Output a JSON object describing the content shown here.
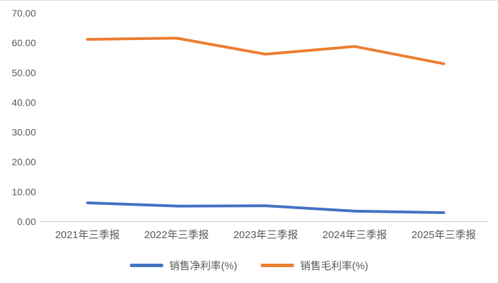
{
  "chart_data": {
    "type": "line",
    "categories": [
      "2021年三季报",
      "2022年三季报",
      "2023年三季报",
      "2024年三季报",
      "2025年三季报"
    ],
    "series": [
      {
        "name": "销售净利率(%)",
        "color": "#4472C4",
        "values": [
          6.3,
          5.2,
          5.3,
          3.5,
          3.0
        ]
      },
      {
        "name": "销售毛利率(%)",
        "color": "#ED7D31",
        "values": [
          61.2,
          61.6,
          56.2,
          58.8,
          53.0
        ]
      }
    ],
    "ylim": [
      0,
      70
    ],
    "ytick_step": 10,
    "ytick_labels": [
      "0.00",
      "10.00",
      "20.00",
      "30.00",
      "40.00",
      "50.00",
      "60.00",
      "70.00"
    ],
    "grid": false,
    "legend_position": "bottom",
    "axis_line_color": "#bfbfbf",
    "text_color": "#595959"
  }
}
